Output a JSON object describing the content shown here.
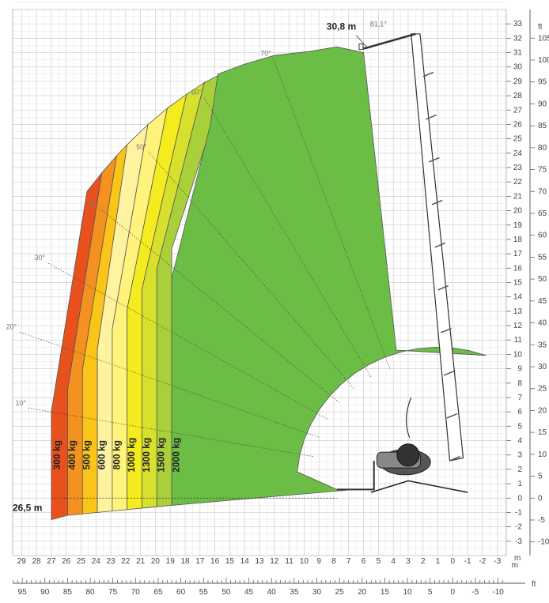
{
  "chart_data": {
    "type": "area",
    "title": "",
    "max_height_label": "30,8 m",
    "max_angle_label": "81,1°",
    "max_outreach_label": "26,5 m",
    "x_axis_m": {
      "unit": "m",
      "ticks": [
        29,
        28,
        27,
        26,
        25,
        24,
        23,
        22,
        21,
        20,
        19,
        18,
        17,
        16,
        15,
        14,
        13,
        12,
        11,
        10,
        9,
        8,
        7,
        6,
        5,
        4,
        3,
        2,
        1,
        0,
        -1,
        -2,
        -3
      ],
      "range": [
        29.6,
        -3.6
      ]
    },
    "x_axis_ft": {
      "unit": "ft",
      "ticks": [
        95,
        90,
        85,
        80,
        75,
        70,
        65,
        60,
        55,
        50,
        45,
        40,
        35,
        30,
        25,
        20,
        15,
        10,
        5,
        0,
        -5,
        -10
      ]
    },
    "y_axis_m": {
      "unit": "m",
      "ticks": [
        -3,
        -2,
        -1,
        0,
        1,
        2,
        3,
        4,
        5,
        6,
        7,
        8,
        9,
        10,
        11,
        12,
        13,
        14,
        15,
        16,
        17,
        18,
        19,
        20,
        21,
        22,
        23,
        24,
        25,
        26,
        27,
        28,
        29,
        30,
        31,
        32,
        33
      ],
      "range": [
        -4,
        34
      ]
    },
    "y_axis_ft": {
      "unit": "ft",
      "ticks": [
        -10,
        -5,
        0,
        5,
        10,
        15,
        20,
        25,
        30,
        35,
        40,
        45,
        50,
        55,
        60,
        65,
        70,
        75,
        80,
        85,
        90,
        95,
        100,
        105
      ]
    },
    "load_zones": [
      {
        "name": "300 kg",
        "color": "#e8501e"
      },
      {
        "name": "400 kg",
        "color": "#f39220"
      },
      {
        "name": "500 kg",
        "color": "#fbc419"
      },
      {
        "name": "600 kg",
        "color": "#fff3a0"
      },
      {
        "name": "800 kg",
        "color": "#fff37b"
      },
      {
        "name": "1000 kg",
        "color": "#f4ec1e"
      },
      {
        "name": "1300 kg",
        "color": "#d6e02d"
      },
      {
        "name": "1500 kg",
        "color": "#a9cf3b"
      },
      {
        "name": "2000 kg",
        "color": "#6cbd45"
      }
    ],
    "angle_labels": [
      "10°",
      "20°",
      "30°",
      "40°",
      "50°",
      "60°",
      "70°"
    ],
    "grid": true
  }
}
